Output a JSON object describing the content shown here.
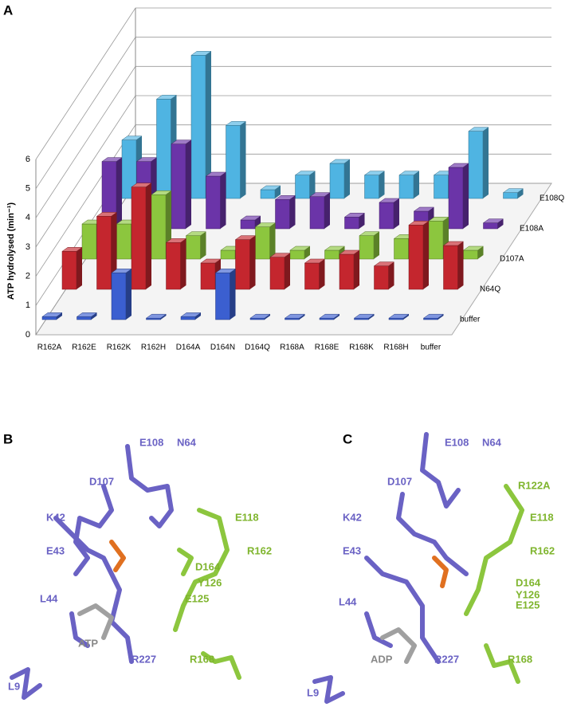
{
  "chart_data": {
    "type": "bar3d",
    "panel": "A",
    "y_label": "ATP hydrolysed (min⁻¹)",
    "categories": [
      "R162A",
      "R162E",
      "R162K",
      "R162H",
      "D164A",
      "D164N",
      "D164Q",
      "R168A",
      "R168E",
      "R168K",
      "R168H",
      "buffer"
    ],
    "ylim": [
      0,
      6
    ],
    "yticks": [
      0,
      1,
      2,
      3,
      4,
      5,
      6
    ],
    "grid": true,
    "series": [
      {
        "name": "buffer",
        "color": "#3b5fd0",
        "values": [
          0.1,
          0.1,
          1.6,
          0.05,
          0.1,
          1.6,
          0.05,
          0.05,
          0.05,
          0.05,
          0.05,
          0.05
        ]
      },
      {
        "name": "N64Q",
        "color": "#c4262e",
        "values": [
          1.3,
          2.5,
          3.5,
          1.6,
          0.9,
          1.7,
          1.1,
          0.9,
          1.2,
          0.8,
          2.2,
          1.5
        ]
      },
      {
        "name": "D107A",
        "color": "#8cc63e",
        "values": [
          1.2,
          1.2,
          2.2,
          0.8,
          0.3,
          1.1,
          0.3,
          0.3,
          0.8,
          0.7,
          1.3,
          0.3
        ]
      },
      {
        "name": "E108A",
        "color": "#6b34a8",
        "values": [
          2.3,
          2.3,
          2.9,
          1.8,
          0.3,
          1.0,
          1.1,
          0.4,
          0.9,
          0.6,
          2.1,
          0.2
        ]
      },
      {
        "name": "E108Q",
        "color": "#4fb4e2",
        "values": [
          2.0,
          3.4,
          4.9,
          2.5,
          0.3,
          0.8,
          1.2,
          0.8,
          0.8,
          0.8,
          2.3,
          0.2
        ]
      }
    ]
  },
  "panel_b": {
    "label": "B",
    "residues": [
      "E108",
      "N64",
      "D107",
      "K42",
      "E118",
      "E43",
      "R162",
      "D164",
      "Y126",
      "L44",
      "E125",
      "ATP",
      "R168",
      "R227",
      "L9"
    ]
  },
  "panel_c": {
    "label": "C",
    "residues": [
      "E108",
      "N64",
      "R122A",
      "D107",
      "E118",
      "K42",
      "E43",
      "R162",
      "D164",
      "Y126",
      "E125",
      "L44",
      "ADP",
      "R227",
      "R168",
      "L9"
    ]
  }
}
